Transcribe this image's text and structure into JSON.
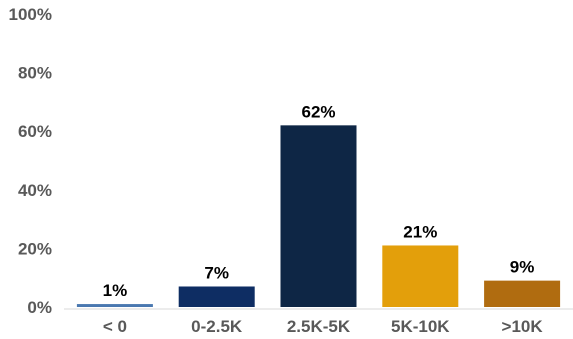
{
  "chart_data": {
    "type": "bar",
    "categories": [
      "< 0",
      "0-2.5K",
      "2.5K-5K",
      "5K-10K",
      ">10K"
    ],
    "values": [
      1,
      7,
      62,
      21,
      9
    ],
    "value_suffix": "%",
    "title": "",
    "xlabel": "",
    "ylabel": "",
    "ylim": [
      0,
      100
    ],
    "yticks": [
      0,
      20,
      40,
      60,
      80,
      100
    ],
    "ytick_labels": [
      "0%",
      "20%",
      "40%",
      "60%",
      "80%",
      "100%"
    ],
    "data_labels": [
      "1%",
      "7%",
      "62%",
      "21%",
      "9%"
    ],
    "bar_colors": [
      "#4a78b0",
      "#0e2d63",
      "#0e2645",
      "#e39f0b",
      "#b06c10"
    ],
    "grid": false,
    "legend": "none"
  }
}
